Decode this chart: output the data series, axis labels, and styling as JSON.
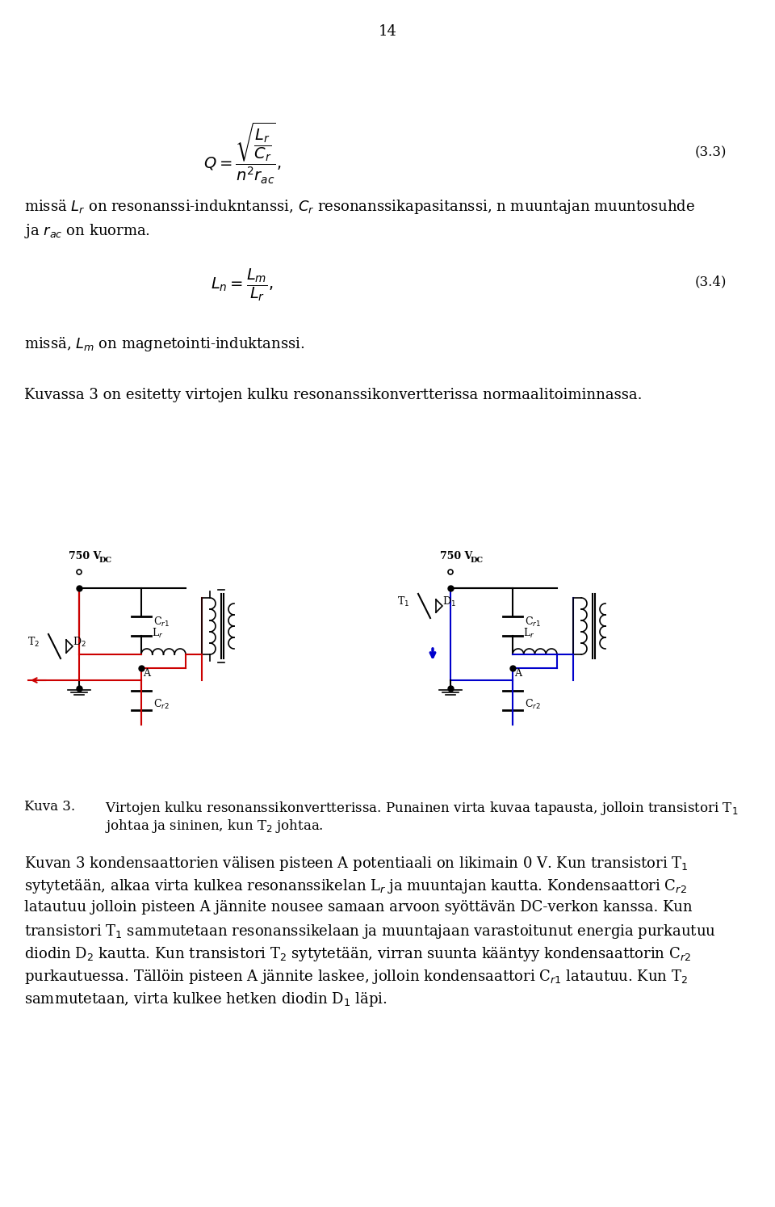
{
  "page_number": "14",
  "bg_color": "#ffffff",
  "text_color": "#000000",
  "fig_width": 9.6,
  "fig_height": 14.94,
  "eq1_label": "(3.3)",
  "eq2_label": "(3.4)",
  "para1": "missä L",
  "para1_sub_r": "r",
  "para1_cont": " on resonanssi-indukntanssi, C",
  "para1_sub_cr": "r",
  "para1_cont2": " resonanssikapasitanssi, n muuntajan muuntosuhde",
  "para2": "ja r",
  "para2_sub": "ac",
  "para2_cont": " on kuorma.",
  "para3": "missä, L",
  "para3_sub": "m",
  "para3_cont": " on magnetointi-induktanssi.",
  "para4": "Kuvassa 3 on esitetty virtojen kulku resonanssikonvertterissa normaalitoiminnassa.",
  "caption_label": "Kuva 3.",
  "caption_text1": "Virtojen kulku resonanssikonvertterissa. Punainen virta kuvaa tapausta, jolloin transistori T",
  "caption_sub1": "1",
  "caption_text2": "johtaa ja sininen, kun T",
  "caption_sub2": "2",
  "caption_text3": " johtaa.",
  "body1_line1": "Kuvan 3 kondensaattorien välisen pisteen A potentiaali on likimain 0 V. Kun transistori T",
  "body1_sub1": "1",
  "body1_line2": "sytytetään, alkaa virta kulkea resonanssikelan L",
  "body1_sub2": "r",
  "body1_line2b": " ja muuntajan kautta. Kondensaattori C",
  "body1_sub3": "r2",
  "body1_line3": "latautuu jolloin pisteen A jännite nousee samaan arvoon syöttävän DC-verkon kanssa. Kun",
  "body1_line4": "transistori T",
  "body1_sub4": "1",
  "body1_line4b": " sammutetaan resonanssikelaan ja muuntajaan varastoitunut energia purkautuu",
  "body1_line5": "diodin D",
  "body1_sub5": "2",
  "body1_line5b": " kautta. Kun transistori T",
  "body1_sub6": "2",
  "body1_line5c": " sytytetään, virran suunta kääntyy kondensaattorin C",
  "body1_sub7": "r2",
  "body1_line6": "purkautuessa. Tällöin pisteen A jännite laskee, jolloin kondensaattori C",
  "body1_sub8": "r1",
  "body1_line6b": " latautuu. Kun T",
  "body1_sub9": "2",
  "body1_line7": "sammutetaan, virta kulkee hetken diodin D",
  "body1_sub10": "1",
  "body1_line7b": " läpi."
}
